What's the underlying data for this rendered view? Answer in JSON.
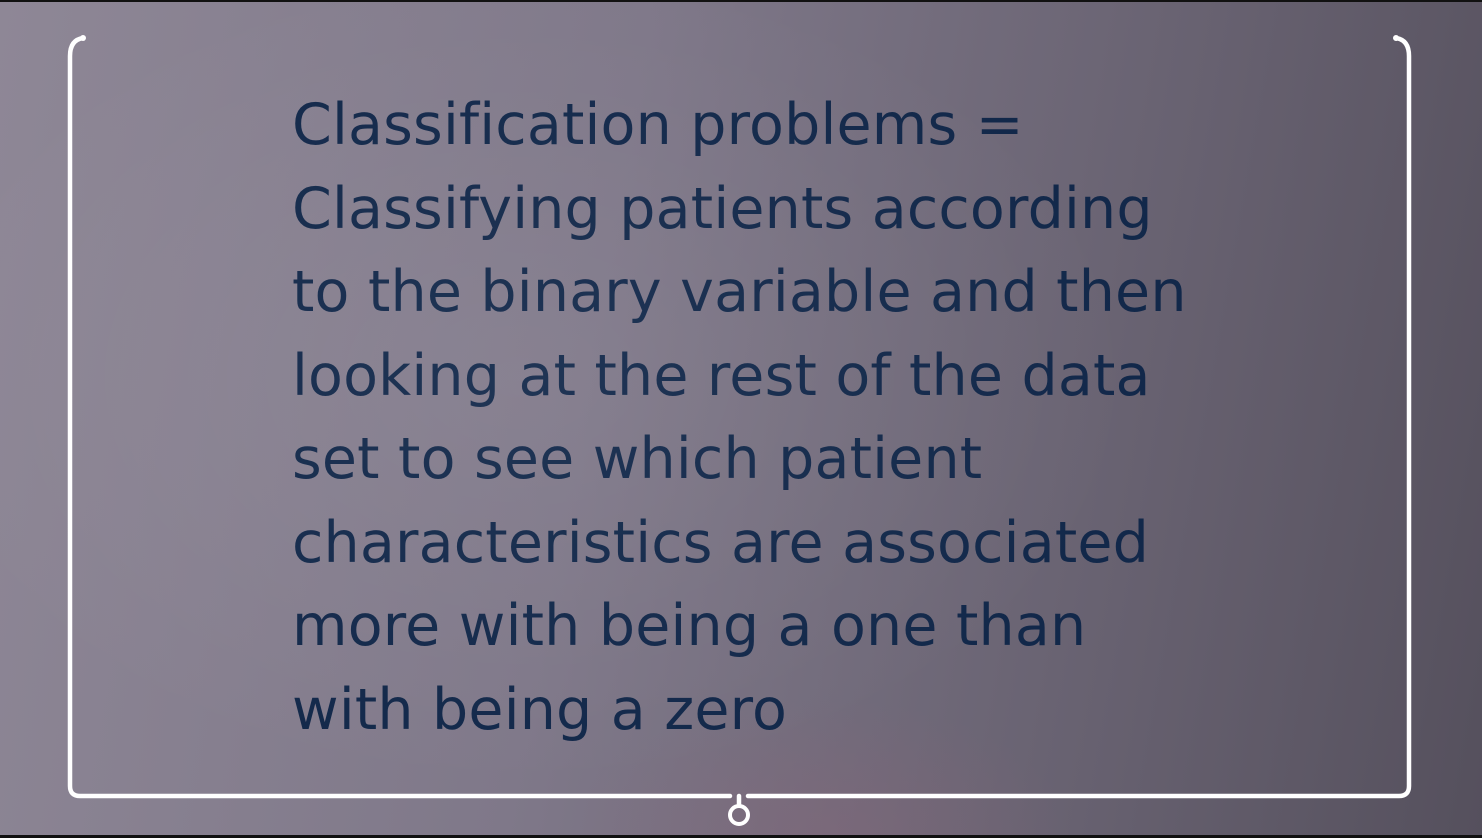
{
  "slide": {
    "lines": [
      "Classification problems =",
      "Classifying patients according",
      "to the binary variable and then",
      "looking at the rest of the data",
      "set to see which patient",
      "characteristics are associated",
      "more with being a one than",
      "with being a zero"
    ],
    "colors": {
      "text": "#12284a",
      "frame": "#ffffff"
    },
    "icons": {
      "frame_bottom_marker": "ring-pin-icon"
    }
  }
}
